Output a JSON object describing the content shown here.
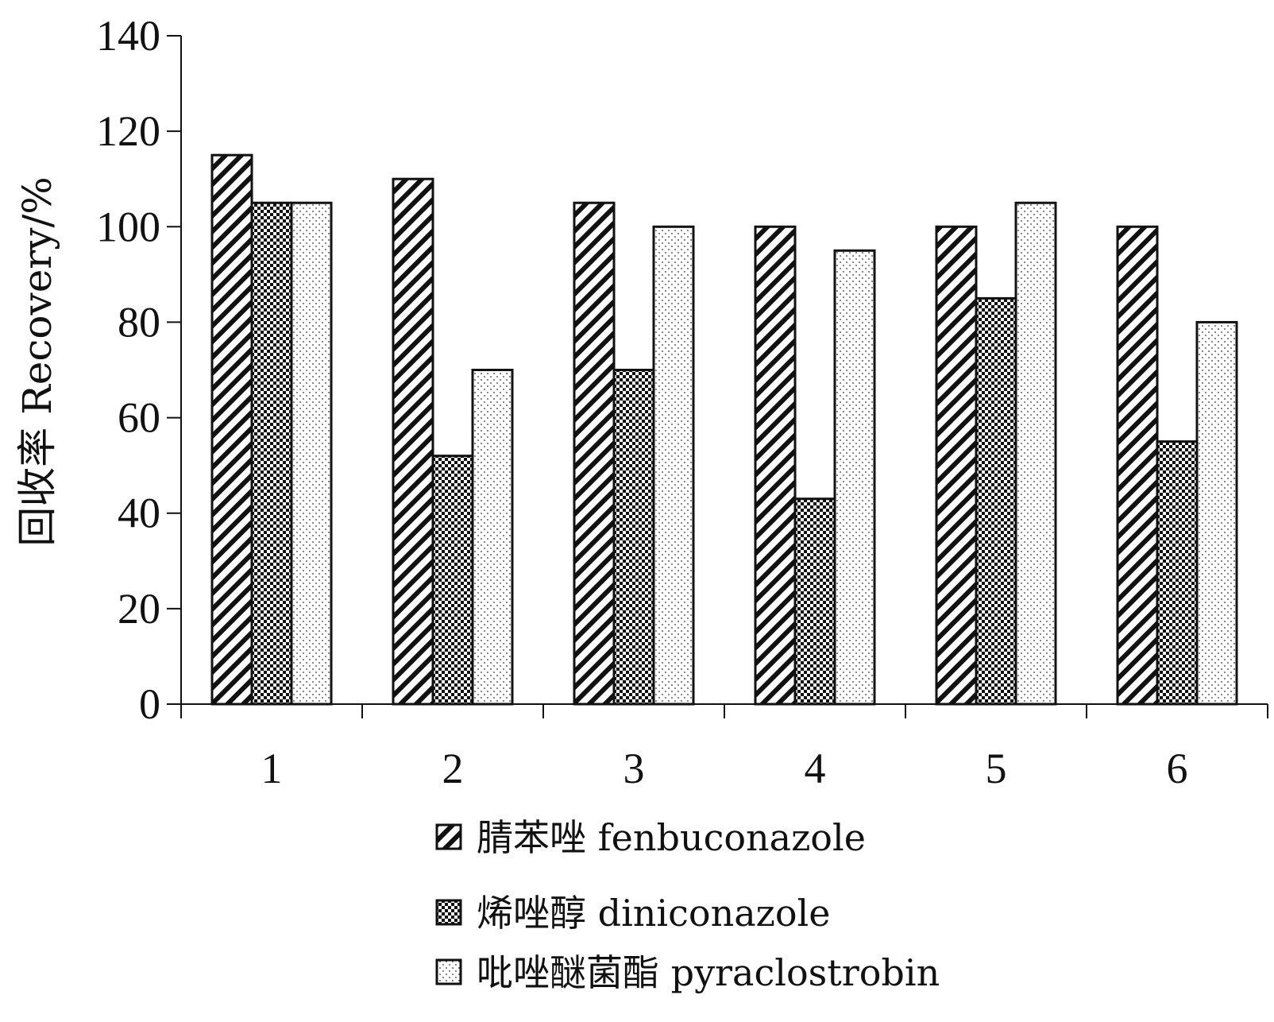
{
  "chart_data": {
    "type": "bar",
    "categories": [
      "1",
      "2",
      "3",
      "4",
      "5",
      "6"
    ],
    "series": [
      {
        "name": "腈苯唑 fenbuconazole",
        "pattern": "hatch",
        "values": [
          115,
          110,
          105,
          100,
          100,
          100
        ]
      },
      {
        "name": "烯唑醇 diniconazole",
        "pattern": "checker",
        "values": [
          105,
          52,
          70,
          43,
          85,
          55
        ]
      },
      {
        "name": "吡唑醚菌酯 pyraclostrobin",
        "pattern": "dots",
        "values": [
          105,
          70,
          100,
          95,
          105,
          80
        ]
      }
    ],
    "ylabel": "回收率 Recovery/%",
    "xlabel": "",
    "ylim": [
      0,
      140
    ],
    "yticks": [
      0,
      20,
      40,
      60,
      80,
      100,
      120,
      140
    ],
    "grid": false,
    "legend_position": "bottom",
    "colors": {
      "stroke": "#111111",
      "fill": "#ffffff"
    }
  }
}
